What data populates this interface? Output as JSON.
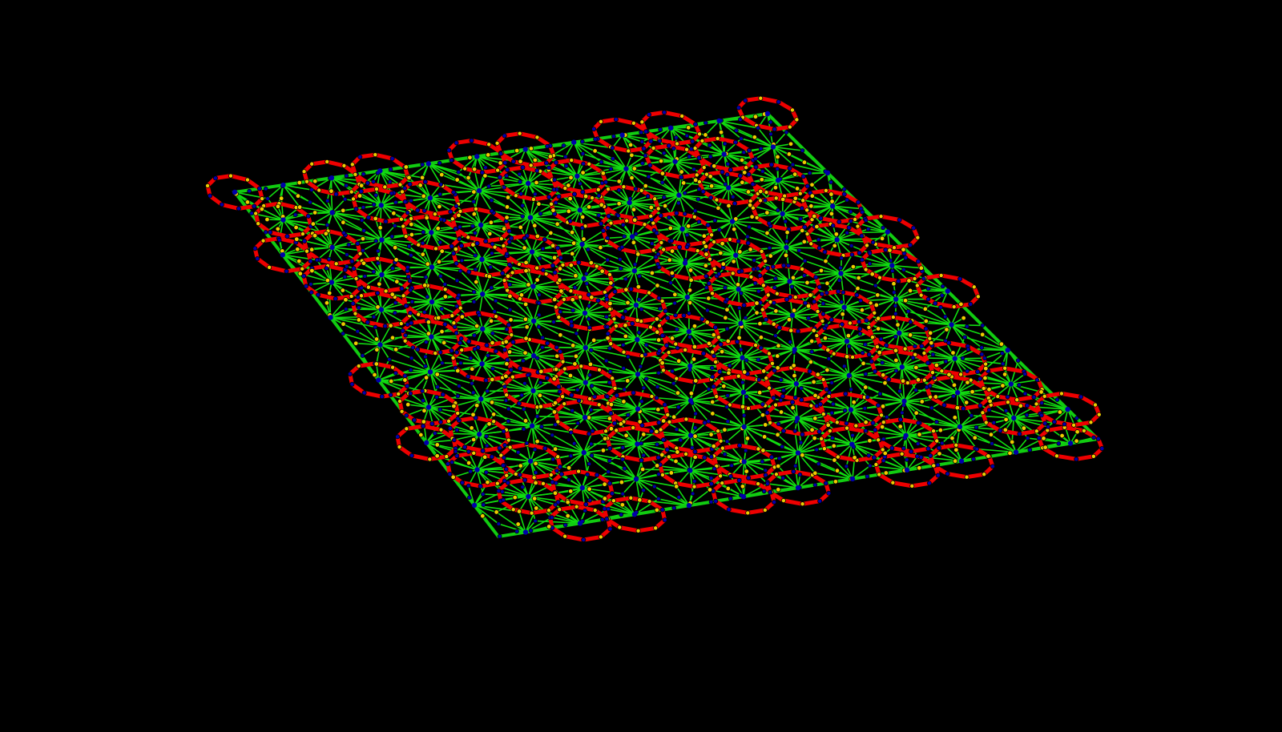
{
  "scene": {
    "background_color": "#000000",
    "colors": {
      "spoke": "#11dd11",
      "ring_bond": "#ee0000",
      "node_blue": "#0000aa",
      "node_yellow": "#eecc00",
      "boundary": "#11cc11"
    }
  }
}
